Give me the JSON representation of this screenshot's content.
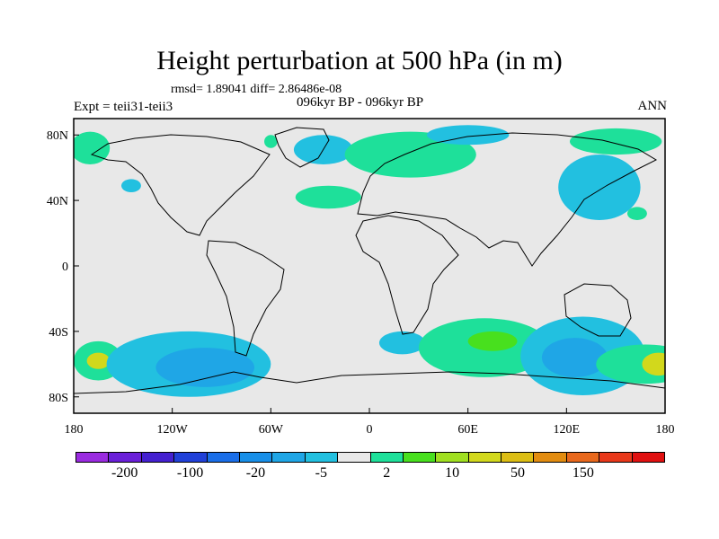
{
  "title": "Height perturbation at 500 hPa (in m)",
  "stats": "rmsd= 1.89041 diff= 2.86486e-08",
  "experiment": "Expt = teii31-teii3",
  "subtitle": "096kyr BP - 096kyr BP",
  "season": "ANN",
  "lat_labels": [
    "80N",
    "40N",
    "0",
    "40S",
    "80S"
  ],
  "lon_labels": [
    "180",
    "120W",
    "60W",
    "0",
    "60E",
    "120E",
    "180"
  ],
  "colorbar": {
    "colors": [
      "#9a2be0",
      "#6a1fd8",
      "#4420d0",
      "#2040d8",
      "#1a6ee8",
      "#188fe8",
      "#1fa6e6",
      "#22c0e0",
      "#e8e8e8",
      "#1ee09a",
      "#48e01e",
      "#a0e020",
      "#d2d81c",
      "#dcbe14",
      "#e28c10",
      "#e8681c",
      "#e8381a",
      "#e01010"
    ],
    "labels": [
      "-200",
      "-100",
      "-20",
      "-5",
      "2",
      "10",
      "50",
      "150"
    ]
  },
  "anomalies": [
    {
      "lon": -170,
      "lat": 72,
      "rx": 12,
      "ry": 10,
      "color": "#1ee09a"
    },
    {
      "lon": -145,
      "lat": 49,
      "rx": 6,
      "ry": 4,
      "color": "#22c0e0"
    },
    {
      "lon": -60,
      "lat": 76,
      "rx": 4,
      "ry": 4,
      "color": "#1ee09a"
    },
    {
      "lon": -28,
      "lat": 71,
      "rx": 18,
      "ry": 9,
      "color": "#22c0e0"
    },
    {
      "lon": -25,
      "lat": 42,
      "rx": 20,
      "ry": 7,
      "color": "#1ee09a"
    },
    {
      "lon": 25,
      "lat": 68,
      "rx": 40,
      "ry": 14,
      "color": "#1ee09a"
    },
    {
      "lon": 60,
      "lat": 80,
      "rx": 25,
      "ry": 6,
      "color": "#22c0e0"
    },
    {
      "lon": 150,
      "lat": 76,
      "rx": 28,
      "ry": 8,
      "color": "#1ee09a"
    },
    {
      "lon": 140,
      "lat": 48,
      "rx": 25,
      "ry": 20,
      "color": "#22c0e0"
    },
    {
      "lon": 163,
      "lat": 32,
      "rx": 6,
      "ry": 4,
      "color": "#1ee09a"
    },
    {
      "lon": -165,
      "lat": -58,
      "rx": 15,
      "ry": 12,
      "color": "#1ee09a"
    },
    {
      "lon": -165,
      "lat": -58,
      "rx": 7,
      "ry": 5,
      "color": "#d2d81c"
    },
    {
      "lon": -110,
      "lat": -60,
      "rx": 50,
      "ry": 20,
      "color": "#22c0e0"
    },
    {
      "lon": -100,
      "lat": -62,
      "rx": 30,
      "ry": 12,
      "color": "#1fa6e6"
    },
    {
      "lon": 20,
      "lat": -47,
      "rx": 14,
      "ry": 7,
      "color": "#22c0e0"
    },
    {
      "lon": 70,
      "lat": -50,
      "rx": 40,
      "ry": 18,
      "color": "#1ee09a"
    },
    {
      "lon": 75,
      "lat": -46,
      "rx": 15,
      "ry": 6,
      "color": "#48e01e"
    },
    {
      "lon": 130,
      "lat": -55,
      "rx": 38,
      "ry": 24,
      "color": "#22c0e0"
    },
    {
      "lon": 125,
      "lat": -56,
      "rx": 20,
      "ry": 12,
      "color": "#1fa6e6"
    },
    {
      "lon": 168,
      "lat": -60,
      "rx": 30,
      "ry": 12,
      "color": "#1ee09a"
    },
    {
      "lon": 176,
      "lat": -60,
      "rx": 10,
      "ry": 7,
      "color": "#d2d81c"
    }
  ],
  "background_color": "#e8e8e8"
}
